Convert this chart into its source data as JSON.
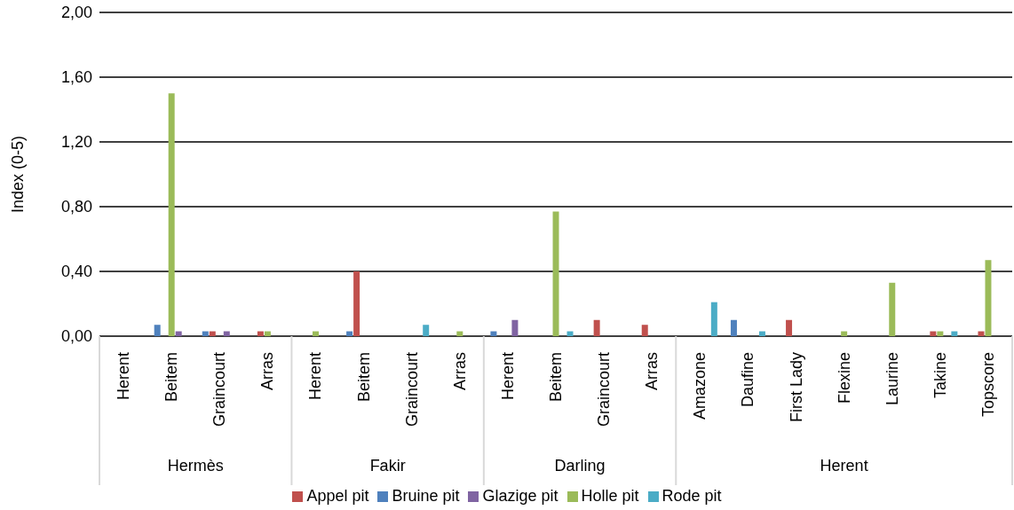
{
  "chart_data": {
    "type": "bar",
    "ylabel": "Index (0-5)",
    "categories": [
      "Herent",
      "Beitem",
      "Graincourt",
      "Arras",
      "Herent",
      "Beitem",
      "Graincourt",
      "Arras",
      "Herent",
      "Beitem",
      "Graincourt",
      "Arras",
      "Amazone",
      "Daufine",
      "First Lady",
      "Flexine",
      "Laurine",
      "Takine",
      "Topscore"
    ],
    "annotations": [
      "Hermès",
      "Fakir",
      "Darling",
      "Herent"
    ],
    "series": [
      {
        "name": "Bruine pit",
        "color": "#4f81bd",
        "values": [
          0,
          0.07,
          0.03,
          0,
          0,
          0.03,
          0,
          0,
          0.03,
          0,
          0,
          0,
          0,
          0.1,
          0,
          0,
          0,
          0,
          0
        ]
      },
      {
        "name": "Appel pit",
        "color": "#c0504d",
        "values": [
          0,
          0,
          0.03,
          0.03,
          0,
          0.4,
          0,
          0,
          0,
          0,
          0.1,
          0.07,
          0,
          0,
          0.1,
          0,
          0,
          0.03,
          0.03
        ]
      },
      {
        "name": "Holle pit",
        "color": "#9bbb59",
        "values": [
          0,
          1.5,
          0,
          0.03,
          0.03,
          0,
          0,
          0.03,
          0,
          0.77,
          0,
          0,
          0,
          0,
          0,
          0.03,
          0.33,
          0.03,
          0.47
        ]
      },
      {
        "name": "Glazige pit",
        "color": "#8064a2",
        "values": [
          0,
          0.03,
          0.03,
          0,
          0,
          0,
          0,
          0,
          0.1,
          0,
          0,
          0,
          0,
          0,
          0,
          0,
          0,
          0,
          0
        ]
      },
      {
        "name": "Rode pit",
        "color": "#4bacc6",
        "values": [
          0,
          0,
          0,
          0,
          0,
          0,
          0.07,
          0,
          0,
          0.03,
          0,
          0,
          0.21,
          0.03,
          0,
          0,
          0,
          0.03,
          0
        ]
      }
    ],
    "ylim": [
      0,
      2
    ],
    "yticks": [
      {
        "value": 0,
        "label": "0,00"
      },
      {
        "value": 0.4,
        "label": "0,40"
      },
      {
        "value": 0.8,
        "label": "0,80"
      },
      {
        "value": 1.2,
        "label": "1,20"
      },
      {
        "value": 1.6,
        "label": "1,60"
      },
      {
        "value": 2,
        "label": "2,00"
      }
    ],
    "grid": "y",
    "legend": "bottom"
  }
}
